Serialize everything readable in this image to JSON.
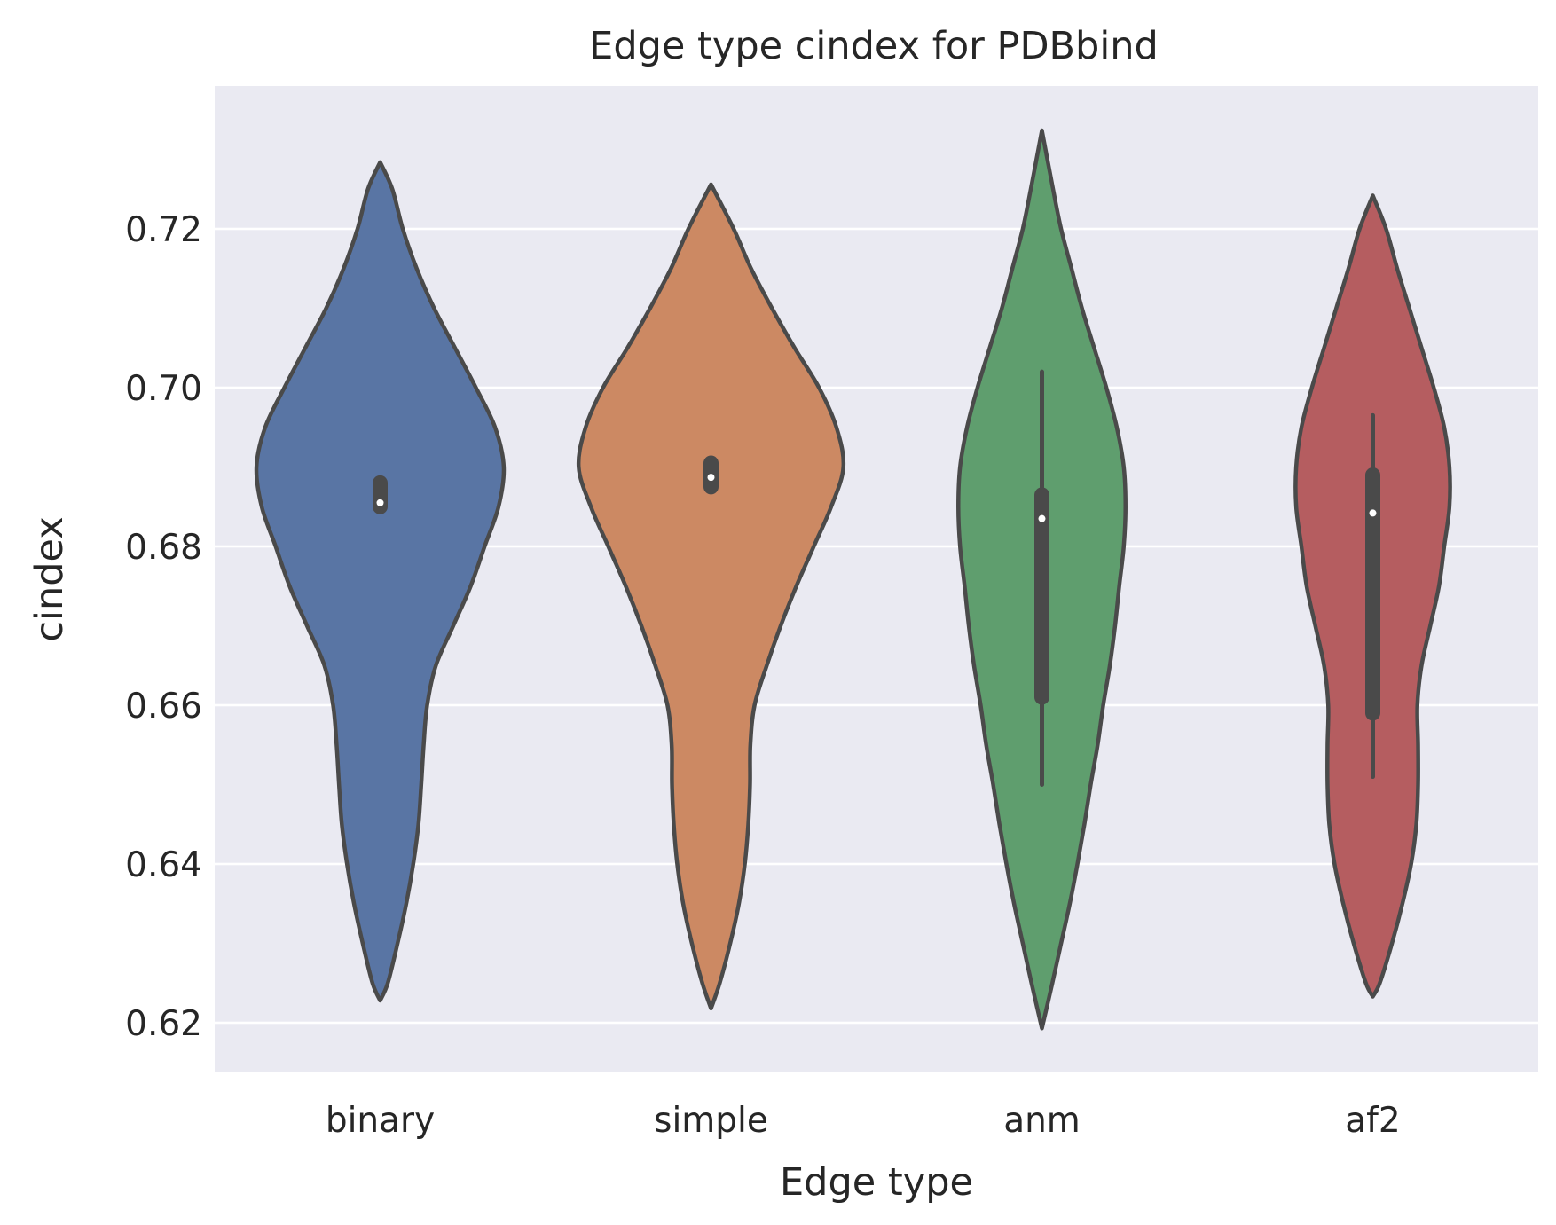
{
  "chart_data": {
    "type": "violin",
    "title": "Edge type cindex for PDBbind",
    "xlabel": "Edge type",
    "ylabel": "cindex",
    "categories": [
      "binary",
      "simple",
      "anm",
      "af2"
    ],
    "yticks": [
      "0.62",
      "0.64",
      "0.66",
      "0.68",
      "0.70",
      "0.72"
    ],
    "ytick_values": [
      0.62,
      0.64,
      0.66,
      0.68,
      0.7,
      0.72
    ],
    "ylim": [
      0.614,
      0.738
    ],
    "grid": true,
    "legend": "none",
    "colors": {
      "background": "#eaeaf2",
      "grid": "#ffffff",
      "outline": "#4a4a4a",
      "median": "#ffffff"
    },
    "violins": [
      {
        "category": "binary",
        "color": "#5975a4",
        "min": 0.6228,
        "max": 0.7284,
        "q1": 0.685,
        "median": 0.6855,
        "q3": 0.688,
        "whisker_low": 0.685,
        "whisker_high": 0.688,
        "density": [
          [
            0.6228,
            0.0
          ],
          [
            0.625,
            0.022
          ],
          [
            0.63,
            0.05
          ],
          [
            0.635,
            0.075
          ],
          [
            0.64,
            0.095
          ],
          [
            0.645,
            0.11
          ],
          [
            0.65,
            0.118
          ],
          [
            0.655,
            0.125
          ],
          [
            0.66,
            0.135
          ],
          [
            0.665,
            0.16
          ],
          [
            0.67,
            0.21
          ],
          [
            0.675,
            0.26
          ],
          [
            0.68,
            0.3
          ],
          [
            0.685,
            0.34
          ],
          [
            0.69,
            0.355
          ],
          [
            0.695,
            0.33
          ],
          [
            0.7,
            0.275
          ],
          [
            0.705,
            0.215
          ],
          [
            0.71,
            0.155
          ],
          [
            0.715,
            0.105
          ],
          [
            0.72,
            0.065
          ],
          [
            0.725,
            0.035
          ],
          [
            0.7284,
            0.0
          ]
        ]
      },
      {
        "category": "simple",
        "color": "#cc8963",
        "min": 0.6218,
        "max": 0.7256,
        "q1": 0.6875,
        "median": 0.6887,
        "q3": 0.6905,
        "whisker_low": 0.6875,
        "whisker_high": 0.6905,
        "density": [
          [
            0.6218,
            0.0
          ],
          [
            0.625,
            0.025
          ],
          [
            0.63,
            0.055
          ],
          [
            0.635,
            0.08
          ],
          [
            0.64,
            0.097
          ],
          [
            0.645,
            0.107
          ],
          [
            0.65,
            0.112
          ],
          [
            0.655,
            0.113
          ],
          [
            0.66,
            0.125
          ],
          [
            0.665,
            0.16
          ],
          [
            0.67,
            0.2
          ],
          [
            0.675,
            0.245
          ],
          [
            0.68,
            0.295
          ],
          [
            0.685,
            0.345
          ],
          [
            0.69,
            0.38
          ],
          [
            0.695,
            0.36
          ],
          [
            0.7,
            0.31
          ],
          [
            0.705,
            0.24
          ],
          [
            0.71,
            0.175
          ],
          [
            0.715,
            0.115
          ],
          [
            0.72,
            0.065
          ],
          [
            0.7256,
            0.0
          ]
        ]
      },
      {
        "category": "anm",
        "color": "#5f9e6e",
        "min": 0.6193,
        "max": 0.7324,
        "q1": 0.661,
        "median": 0.6835,
        "q3": 0.6865,
        "whisker_low": 0.65,
        "whisker_high": 0.702,
        "density": [
          [
            0.6193,
            0.0
          ],
          [
            0.625,
            0.03
          ],
          [
            0.63,
            0.055
          ],
          [
            0.635,
            0.08
          ],
          [
            0.64,
            0.102
          ],
          [
            0.645,
            0.122
          ],
          [
            0.65,
            0.14
          ],
          [
            0.655,
            0.16
          ],
          [
            0.66,
            0.176
          ],
          [
            0.665,
            0.195
          ],
          [
            0.67,
            0.21
          ],
          [
            0.675,
            0.222
          ],
          [
            0.68,
            0.235
          ],
          [
            0.685,
            0.24
          ],
          [
            0.69,
            0.235
          ],
          [
            0.695,
            0.215
          ],
          [
            0.7,
            0.185
          ],
          [
            0.705,
            0.15
          ],
          [
            0.71,
            0.115
          ],
          [
            0.715,
            0.085
          ],
          [
            0.72,
            0.055
          ],
          [
            0.725,
            0.032
          ],
          [
            0.7324,
            0.0
          ]
        ]
      },
      {
        "category": "af2",
        "color": "#b55d60",
        "min": 0.6233,
        "max": 0.7242,
        "q1": 0.659,
        "median": 0.6842,
        "q3": 0.689,
        "whisker_low": 0.651,
        "whisker_high": 0.6965,
        "density": [
          [
            0.6233,
            0.0
          ],
          [
            0.625,
            0.02
          ],
          [
            0.63,
            0.055
          ],
          [
            0.635,
            0.085
          ],
          [
            0.64,
            0.11
          ],
          [
            0.645,
            0.125
          ],
          [
            0.65,
            0.13
          ],
          [
            0.655,
            0.13
          ],
          [
            0.66,
            0.128
          ],
          [
            0.665,
            0.14
          ],
          [
            0.67,
            0.165
          ],
          [
            0.675,
            0.19
          ],
          [
            0.68,
            0.205
          ],
          [
            0.685,
            0.22
          ],
          [
            0.69,
            0.22
          ],
          [
            0.695,
            0.205
          ],
          [
            0.7,
            0.175
          ],
          [
            0.705,
            0.14
          ],
          [
            0.71,
            0.105
          ],
          [
            0.715,
            0.07
          ],
          [
            0.72,
            0.038
          ],
          [
            0.7242,
            0.0
          ]
        ]
      }
    ]
  }
}
